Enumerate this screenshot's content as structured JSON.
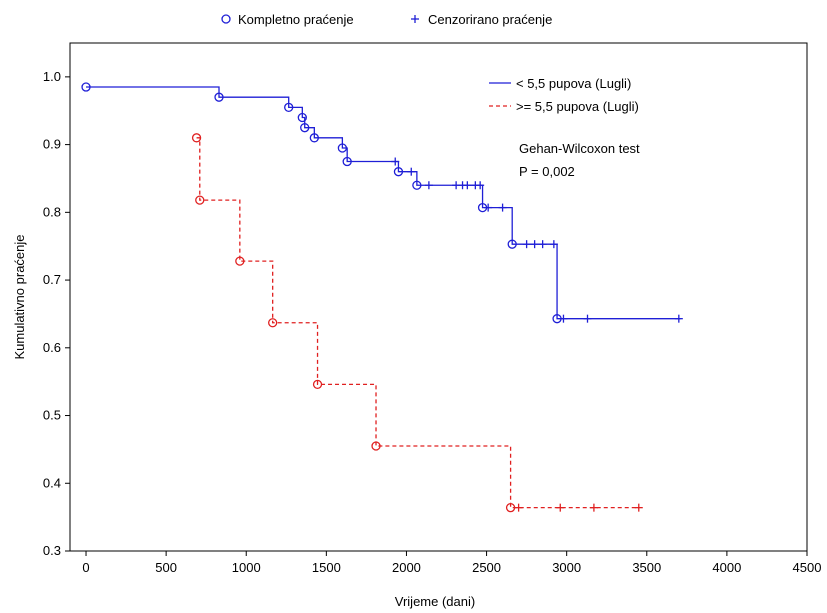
{
  "top_legend": {
    "complete_label": "Kompletno praćenje",
    "censored_label": "Cenzorirano praćenje"
  },
  "annotations": {
    "test_name": "Gehan-Wilcoxon test",
    "p_value": "P = 0,002"
  },
  "colors": {
    "series1": "#1f1fd6",
    "series2": "#e02020",
    "axis": "#000000"
  },
  "chart_data": {
    "type": "line",
    "subtype": "kaplan-meier step",
    "xlabel": "Vrijeme (dani)",
    "ylabel": "Kumulativno praćenje",
    "xlim": [
      -100,
      4500
    ],
    "ylim": [
      0.3,
      1.05
    ],
    "xticks": [
      0,
      500,
      1000,
      1500,
      2000,
      2500,
      3000,
      3500,
      4000,
      4500
    ],
    "yticks": [
      0.3,
      0.4,
      0.5,
      0.6,
      0.7,
      0.8,
      0.9,
      1.0
    ],
    "ytick_labels": [
      "0.3",
      "0.4",
      "0.5",
      "0.6",
      "0.7",
      "0.8",
      "0.9",
      "1.0"
    ],
    "grid": false,
    "legend_position": "top-right",
    "series": [
      {
        "name": "< 5,5 pupova (Lugli)",
        "style": "solid",
        "color": "#1f1fd6",
        "steps": [
          [
            0,
            0.985
          ],
          [
            830,
            0.97
          ],
          [
            1265,
            0.955
          ],
          [
            1350,
            0.94
          ],
          [
            1365,
            0.925
          ],
          [
            1425,
            0.91
          ],
          [
            1600,
            0.895
          ],
          [
            1630,
            0.875
          ],
          [
            1950,
            0.86
          ],
          [
            2065,
            0.84
          ],
          [
            2475,
            0.807
          ],
          [
            2660,
            0.753
          ],
          [
            2940,
            0.643
          ]
        ],
        "end_x": 3710,
        "events": [
          [
            0,
            0.985
          ],
          [
            830,
            0.97
          ],
          [
            1265,
            0.955
          ],
          [
            1350,
            0.94
          ],
          [
            1365,
            0.925
          ],
          [
            1425,
            0.91
          ],
          [
            1600,
            0.895
          ],
          [
            1630,
            0.875
          ],
          [
            1950,
            0.86
          ],
          [
            2065,
            0.84
          ],
          [
            2475,
            0.807
          ],
          [
            2660,
            0.753
          ],
          [
            2940,
            0.643
          ]
        ],
        "censored": [
          [
            1930,
            0.875
          ],
          [
            2030,
            0.86
          ],
          [
            2140,
            0.84
          ],
          [
            2310,
            0.84
          ],
          [
            2350,
            0.84
          ],
          [
            2380,
            0.84
          ],
          [
            2430,
            0.84
          ],
          [
            2460,
            0.84
          ],
          [
            2510,
            0.807
          ],
          [
            2600,
            0.807
          ],
          [
            2750,
            0.753
          ],
          [
            2800,
            0.753
          ],
          [
            2850,
            0.753
          ],
          [
            2920,
            0.753
          ],
          [
            2980,
            0.643
          ],
          [
            3130,
            0.643
          ],
          [
            3700,
            0.643
          ]
        ]
      },
      {
        "name": ">= 5,5 pupova (Lugli)",
        "style": "dashed",
        "color": "#e02020",
        "steps": [
          [
            690,
            0.91
          ],
          [
            710,
            0.818
          ],
          [
            960,
            0.728
          ],
          [
            1165,
            0.637
          ],
          [
            1445,
            0.546
          ],
          [
            1810,
            0.455
          ],
          [
            2650,
            0.364
          ]
        ],
        "end_x": 3450,
        "events": [
          [
            690,
            0.91
          ],
          [
            710,
            0.818
          ],
          [
            960,
            0.728
          ],
          [
            1165,
            0.637
          ],
          [
            1445,
            0.546
          ],
          [
            1810,
            0.455
          ],
          [
            2650,
            0.364
          ]
        ],
        "censored": [
          [
            2700,
            0.364
          ],
          [
            2960,
            0.364
          ],
          [
            3170,
            0.364
          ],
          [
            3450,
            0.364
          ]
        ]
      }
    ]
  }
}
